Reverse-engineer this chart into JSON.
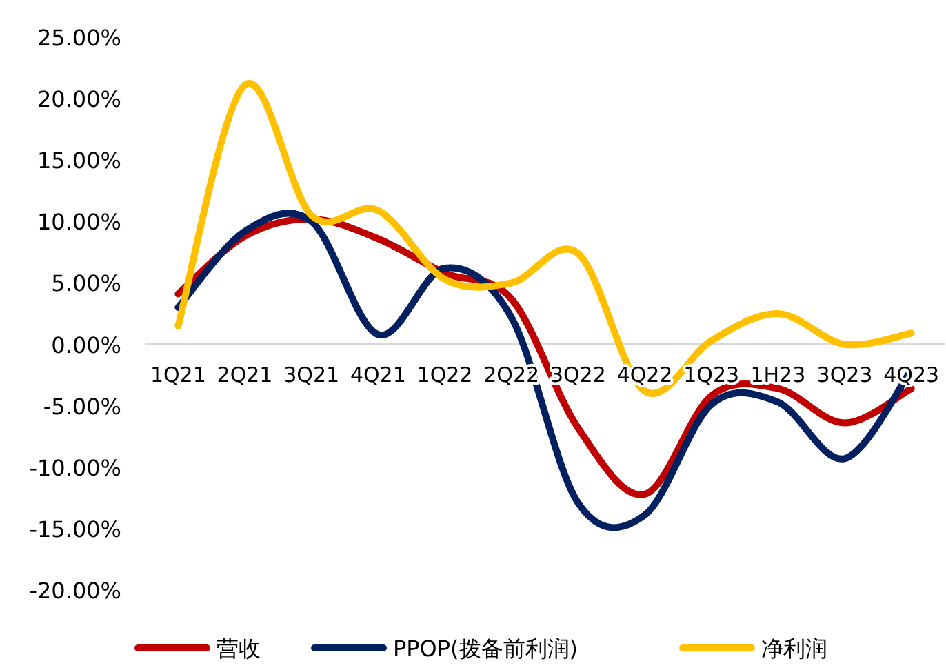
{
  "chart_data": {
    "type": "line",
    "categories": [
      "1Q21",
      "2Q21",
      "3Q21",
      "4Q21",
      "1Q22",
      "2Q22",
      "3Q22",
      "4Q22",
      "1Q23",
      "1H23",
      "3Q23",
      "4Q23"
    ],
    "series": [
      {
        "name": "营收",
        "color": "#c00000",
        "values": [
          4.1,
          8.8,
          10.2,
          8.6,
          5.8,
          3.7,
          -6.8,
          -12.2,
          -4.2,
          -3.6,
          -6.4,
          -3.6
        ]
      },
      {
        "name": "PPOP(拨备前利润)",
        "color": "#002060",
        "values": [
          3.0,
          9.2,
          10.0,
          0.8,
          6.2,
          2.2,
          -12.9,
          -13.9,
          -4.9,
          -4.7,
          -9.3,
          -2.1
        ]
      },
      {
        "name": "净利润",
        "color": "#ffc000",
        "values": [
          1.5,
          21.1,
          10.5,
          10.9,
          5.3,
          5.0,
          7.4,
          -3.8,
          0.3,
          2.5,
          0.0,
          0.9
        ]
      }
    ],
    "ylim": [
      -20,
      25
    ],
    "yticks": [
      {
        "value": 25,
        "label": "25.00%"
      },
      {
        "value": 20,
        "label": "20.00%"
      },
      {
        "value": 15,
        "label": "15.00%"
      },
      {
        "value": 10,
        "label": "10.00%"
      },
      {
        "value": 5,
        "label": "5.00%"
      },
      {
        "value": 0,
        "label": "0.00%"
      },
      {
        "value": -5,
        "label": "-5.00%"
      },
      {
        "value": -10,
        "label": "-10.00%"
      },
      {
        "value": -15,
        "label": "-15.00%"
      },
      {
        "value": -20,
        "label": "-20.00%"
      }
    ],
    "grid": false,
    "legend": "bottom",
    "marker": "none",
    "line_style": "solid"
  }
}
